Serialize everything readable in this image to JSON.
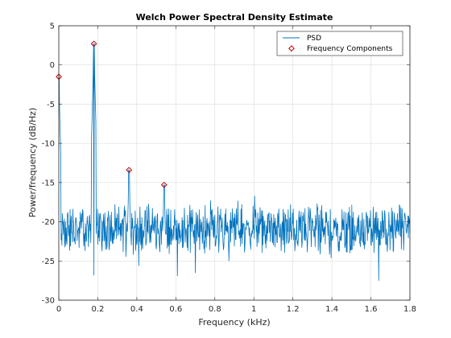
{
  "chart_data": {
    "type": "line",
    "title": "Welch Power Spectral Density Estimate",
    "xlabel": "Frequency (kHz)",
    "ylabel": "Power/frequency (dB/Hz)",
    "xlim": [
      0,
      1.8
    ],
    "ylim": [
      -30,
      5
    ],
    "x_ticks": [
      0,
      0.2,
      0.4,
      0.6,
      0.8,
      1,
      1.2,
      1.4,
      1.6,
      1.8
    ],
    "x_tick_labels": [
      "0",
      "0.2",
      "0.4",
      "0.6",
      "0.8",
      "1",
      "1.2",
      "1.4",
      "1.6",
      "1.8"
    ],
    "y_ticks": [
      5,
      0,
      -5,
      -10,
      -15,
      -20,
      -25,
      -30
    ],
    "y_tick_labels": [
      "5",
      "0",
      "-5",
      "-10",
      "-15",
      "-20",
      "-25",
      "-30"
    ],
    "grid": true,
    "legend_position": "top-right",
    "series": [
      {
        "name": "PSD",
        "color": "#0072BD",
        "style": "line",
        "x_range": [
          0,
          1.8
        ],
        "baseline_db": -21,
        "noise_range_db": [
          -27.5,
          -16.5
        ],
        "peaks": [
          {
            "x": 0.0,
            "y": -1.5
          },
          {
            "x": 0.18,
            "y": 2.7
          },
          {
            "x": 0.36,
            "y": -13.4
          },
          {
            "x": 0.54,
            "y": -15.3
          }
        ]
      },
      {
        "name": "Frequency Components",
        "color": "#C00000",
        "style": "marker",
        "marker": "diamond",
        "points": [
          {
            "x": 0.0,
            "y": -1.5
          },
          {
            "x": 0.18,
            "y": 2.7
          },
          {
            "x": 0.36,
            "y": -13.4
          },
          {
            "x": 0.54,
            "y": -15.3
          }
        ]
      }
    ]
  }
}
